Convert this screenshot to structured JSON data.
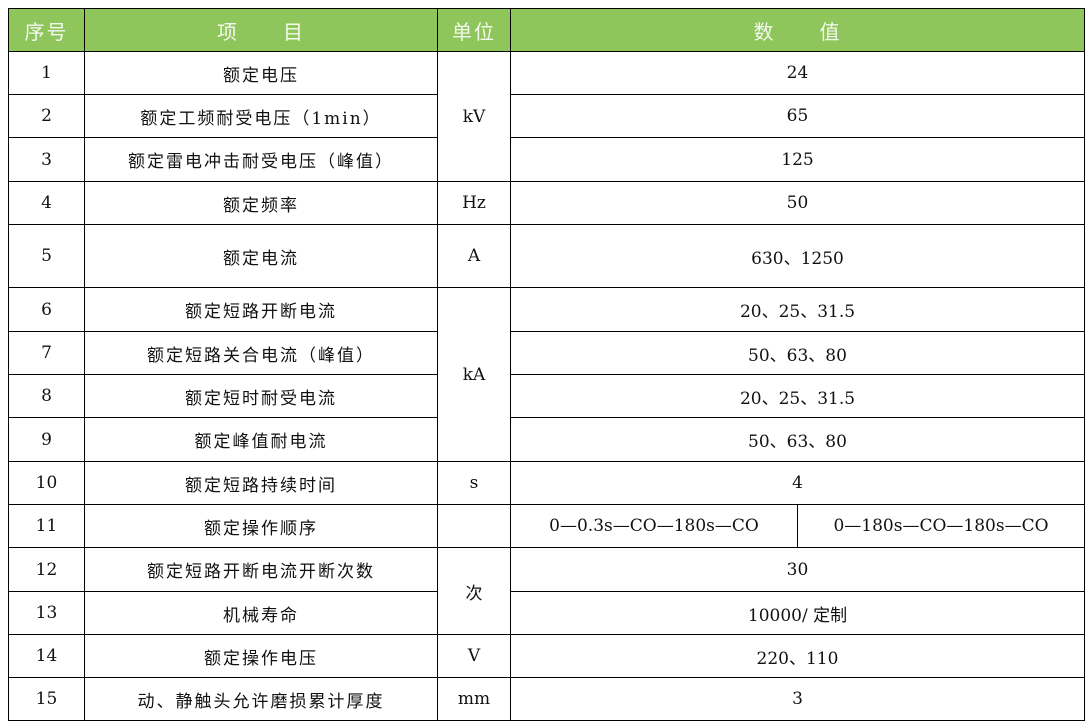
{
  "header": {
    "no": "序号",
    "item": "项　　目",
    "unit": "单位",
    "value": "数　　值"
  },
  "colors": {
    "header_bg": "#8fc65c",
    "header_text": "#f4f8ee",
    "border": "#000000"
  },
  "rows": [
    {
      "no": "1",
      "item": "额定电压",
      "unit": "kV",
      "value": "24"
    },
    {
      "no": "2",
      "item": "额定工频耐受电压（1min）",
      "value": "65"
    },
    {
      "no": "3",
      "item": "额定雷电冲击耐受电压（峰值）",
      "value": "125"
    },
    {
      "no": "4",
      "item": "额定频率",
      "unit": "Hz",
      "value": "50"
    },
    {
      "no": "5",
      "item": "额定电流",
      "unit": "A",
      "value": "630、1250"
    },
    {
      "no": "6",
      "item": "额定短路开断电流",
      "unit": "kA",
      "value": "20、25、31.5"
    },
    {
      "no": "7",
      "item": "额定短路关合电流（峰值）",
      "value": "50、63、80"
    },
    {
      "no": "8",
      "item": "额定短时耐受电流",
      "value": "20、25、31.5"
    },
    {
      "no": "9",
      "item": "额定峰值耐电流",
      "value": "50、63、80"
    },
    {
      "no": "10",
      "item": "额定短路持续时间",
      "unit": "s",
      "value": "4"
    },
    {
      "no": "11",
      "item": "额定操作顺序",
      "unit": "",
      "value_a": "0—0.3s—CO—180s—CO",
      "value_b": "0—180s—CO—180s—CO"
    },
    {
      "no": "12",
      "item": "额定短路开断电流开断次数",
      "unit": "次",
      "value": "30"
    },
    {
      "no": "13",
      "item": "机械寿命",
      "value": "10000/ 定制"
    },
    {
      "no": "14",
      "item": "额定操作电压",
      "unit": "V",
      "value": "220、110"
    },
    {
      "no": "15",
      "item": "动、静触头允许磨损累计厚度",
      "unit": "mm",
      "value": "3"
    }
  ]
}
